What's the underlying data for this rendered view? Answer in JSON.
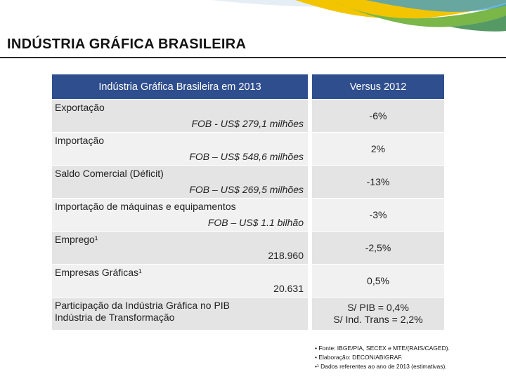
{
  "page": {
    "title": "INDÚSTRIA GRÁFICA BRASILEIRA"
  },
  "table": {
    "header_left": "Indústria Gráfica Brasileira em 2013",
    "header_right": "Versus 2012",
    "rows": [
      {
        "label": "Exportação",
        "value": "FOB - US$ 279,1 milhões",
        "versus": "-6%"
      },
      {
        "label": "Importação",
        "value": "FOB – US$ 548,6 milhões",
        "versus": "2%"
      },
      {
        "label": "Saldo Comercial (Déficit)",
        "value": "FOB – US$ 269,5 milhões",
        "versus": "-13%"
      },
      {
        "label": "Importação de máquinas e equipamentos",
        "value": "FOB – US$ 1.1 bilhão",
        "versus": "-3%"
      },
      {
        "label": "Emprego¹",
        "value": "218.960",
        "versus": "-2,5%"
      },
      {
        "label": "Empresas Gráficas¹",
        "value": "20.631",
        "versus": "0,5%"
      },
      {
        "label_line1": "Participação da Indústria Gráfica no PIB",
        "label_line2": "Indústria de Transformação",
        "versus_line1": "S/ PIB = 0,4%",
        "versus_line2": "S/ Ind. Trans = 2,2%"
      }
    ]
  },
  "notes": [
    "• Fonte: IBGE/PIA, SECEX e MTE/(RAIS/CAGED).",
    "• Elaboração: DECON/ABIGRAF.",
    "•¹ Dados referentes ao ano de 2013 (estimativas)."
  ],
  "colors": {
    "header": "#2f4e8e",
    "row_light": "#f1f1f1",
    "row_dark": "#e4e4e4",
    "deco_green": "#7ab648",
    "deco_yellow": "#f2c500",
    "deco_blue": "#3a9bd6"
  }
}
